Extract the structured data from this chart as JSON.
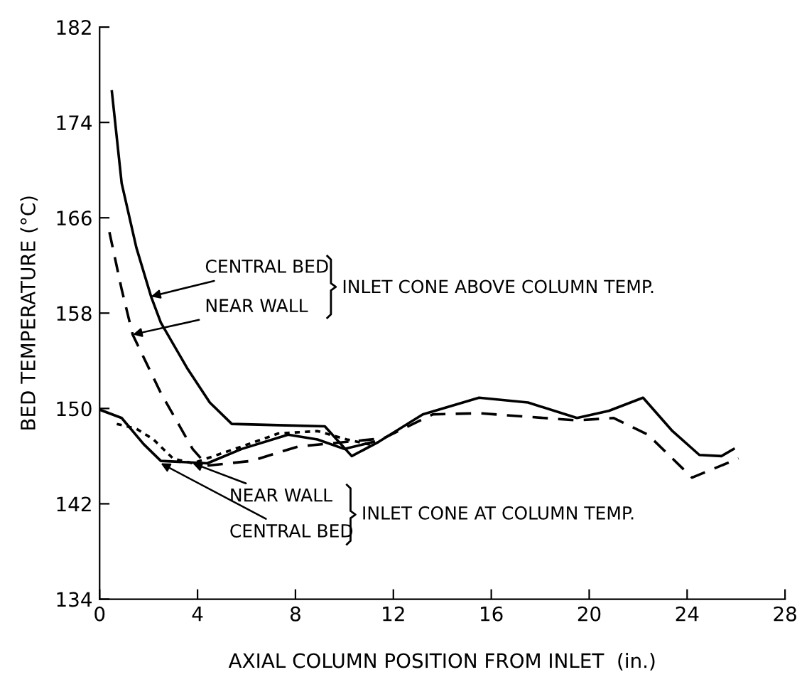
{
  "chart_data": {
    "type": "line",
    "xlabel": "AXIAL COLUMN POSITION FROM INLET  (in.)",
    "ylabel": "BED TEMPERATURE (°C)",
    "xlim": [
      0,
      28
    ],
    "ylim": [
      134,
      182
    ],
    "xticks": [
      0,
      4,
      8,
      12,
      16,
      20,
      24,
      28
    ],
    "yticks": [
      134,
      142,
      150,
      158,
      166,
      174,
      182
    ],
    "grid": false,
    "legend": false,
    "marker": "none",
    "series": [
      {
        "color": "#000000",
        "line_style": "solid",
        "x": [
          0.5,
          0.9,
          1.5,
          2.1,
          2.5,
          3.6,
          4.5,
          5.4,
          7.3,
          9.2,
          10.3,
          11.4,
          13.2,
          15.5,
          17.5,
          19.5,
          20.8,
          22.2,
          23.4,
          24.5,
          25.4,
          25.9
        ],
        "values": [
          176.6,
          168.9,
          163.5,
          159.4,
          157.2,
          153.3,
          150.5,
          148.7,
          148.6,
          148.5,
          146.0,
          147.2,
          149.5,
          150.9,
          150.5,
          149.2,
          149.8,
          150.9,
          148.1,
          146.1,
          146.0,
          146.6
        ]
      },
      {
        "color": "#000000",
        "line_style": "dashed",
        "x": [
          0.4,
          0.9,
          1.35,
          2.5,
          3.8,
          4.4,
          6.2,
          8.1,
          10.1,
          11.6,
          13.6,
          15.5,
          17.5,
          19.5,
          21.0,
          22.4,
          24.2,
          26.1
        ],
        "values": [
          164.8,
          160.0,
          156.2,
          151.3,
          146.6,
          145.2,
          145.6,
          146.8,
          147.2,
          147.5,
          149.5,
          149.6,
          149.3,
          149.0,
          149.2,
          147.8,
          144.2,
          145.8
        ]
      },
      {
        "color": "#000000",
        "line_style": "solid",
        "x": [
          0.0,
          0.9,
          1.8,
          2.5,
          4.4,
          5.8,
          7.7,
          8.9,
          10.0,
          11.2
        ],
        "values": [
          149.9,
          149.2,
          147.0,
          145.6,
          145.4,
          146.6,
          147.8,
          147.4,
          146.6,
          147.2
        ]
      },
      {
        "color": "#000000",
        "line_style": "dotted",
        "x": [
          0.7,
          1.5,
          2.2,
          3.0,
          3.8,
          5.8,
          7.3,
          8.9,
          10.1,
          11.2
        ],
        "values": [
          148.7,
          148.3,
          147.4,
          145.8,
          145.4,
          146.8,
          147.9,
          148.1,
          147.4,
          146.9
        ]
      }
    ],
    "annotations": [
      {
        "text": "CENTRAL BED",
        "x": 2.1,
        "y": 159.4
      },
      {
        "text": "NEAR WALL",
        "x": 1.35,
        "y": 156.2
      },
      "INLET CONE ABOVE COLUMN TEMP.",
      {
        "text": "NEAR WALL",
        "x": 3.8,
        "y": 145.4
      },
      {
        "text": "CENTRAL BED",
        "x": 2.5,
        "y": 145.4
      },
      "INLET CONE AT COLUMN TEMP."
    ]
  }
}
